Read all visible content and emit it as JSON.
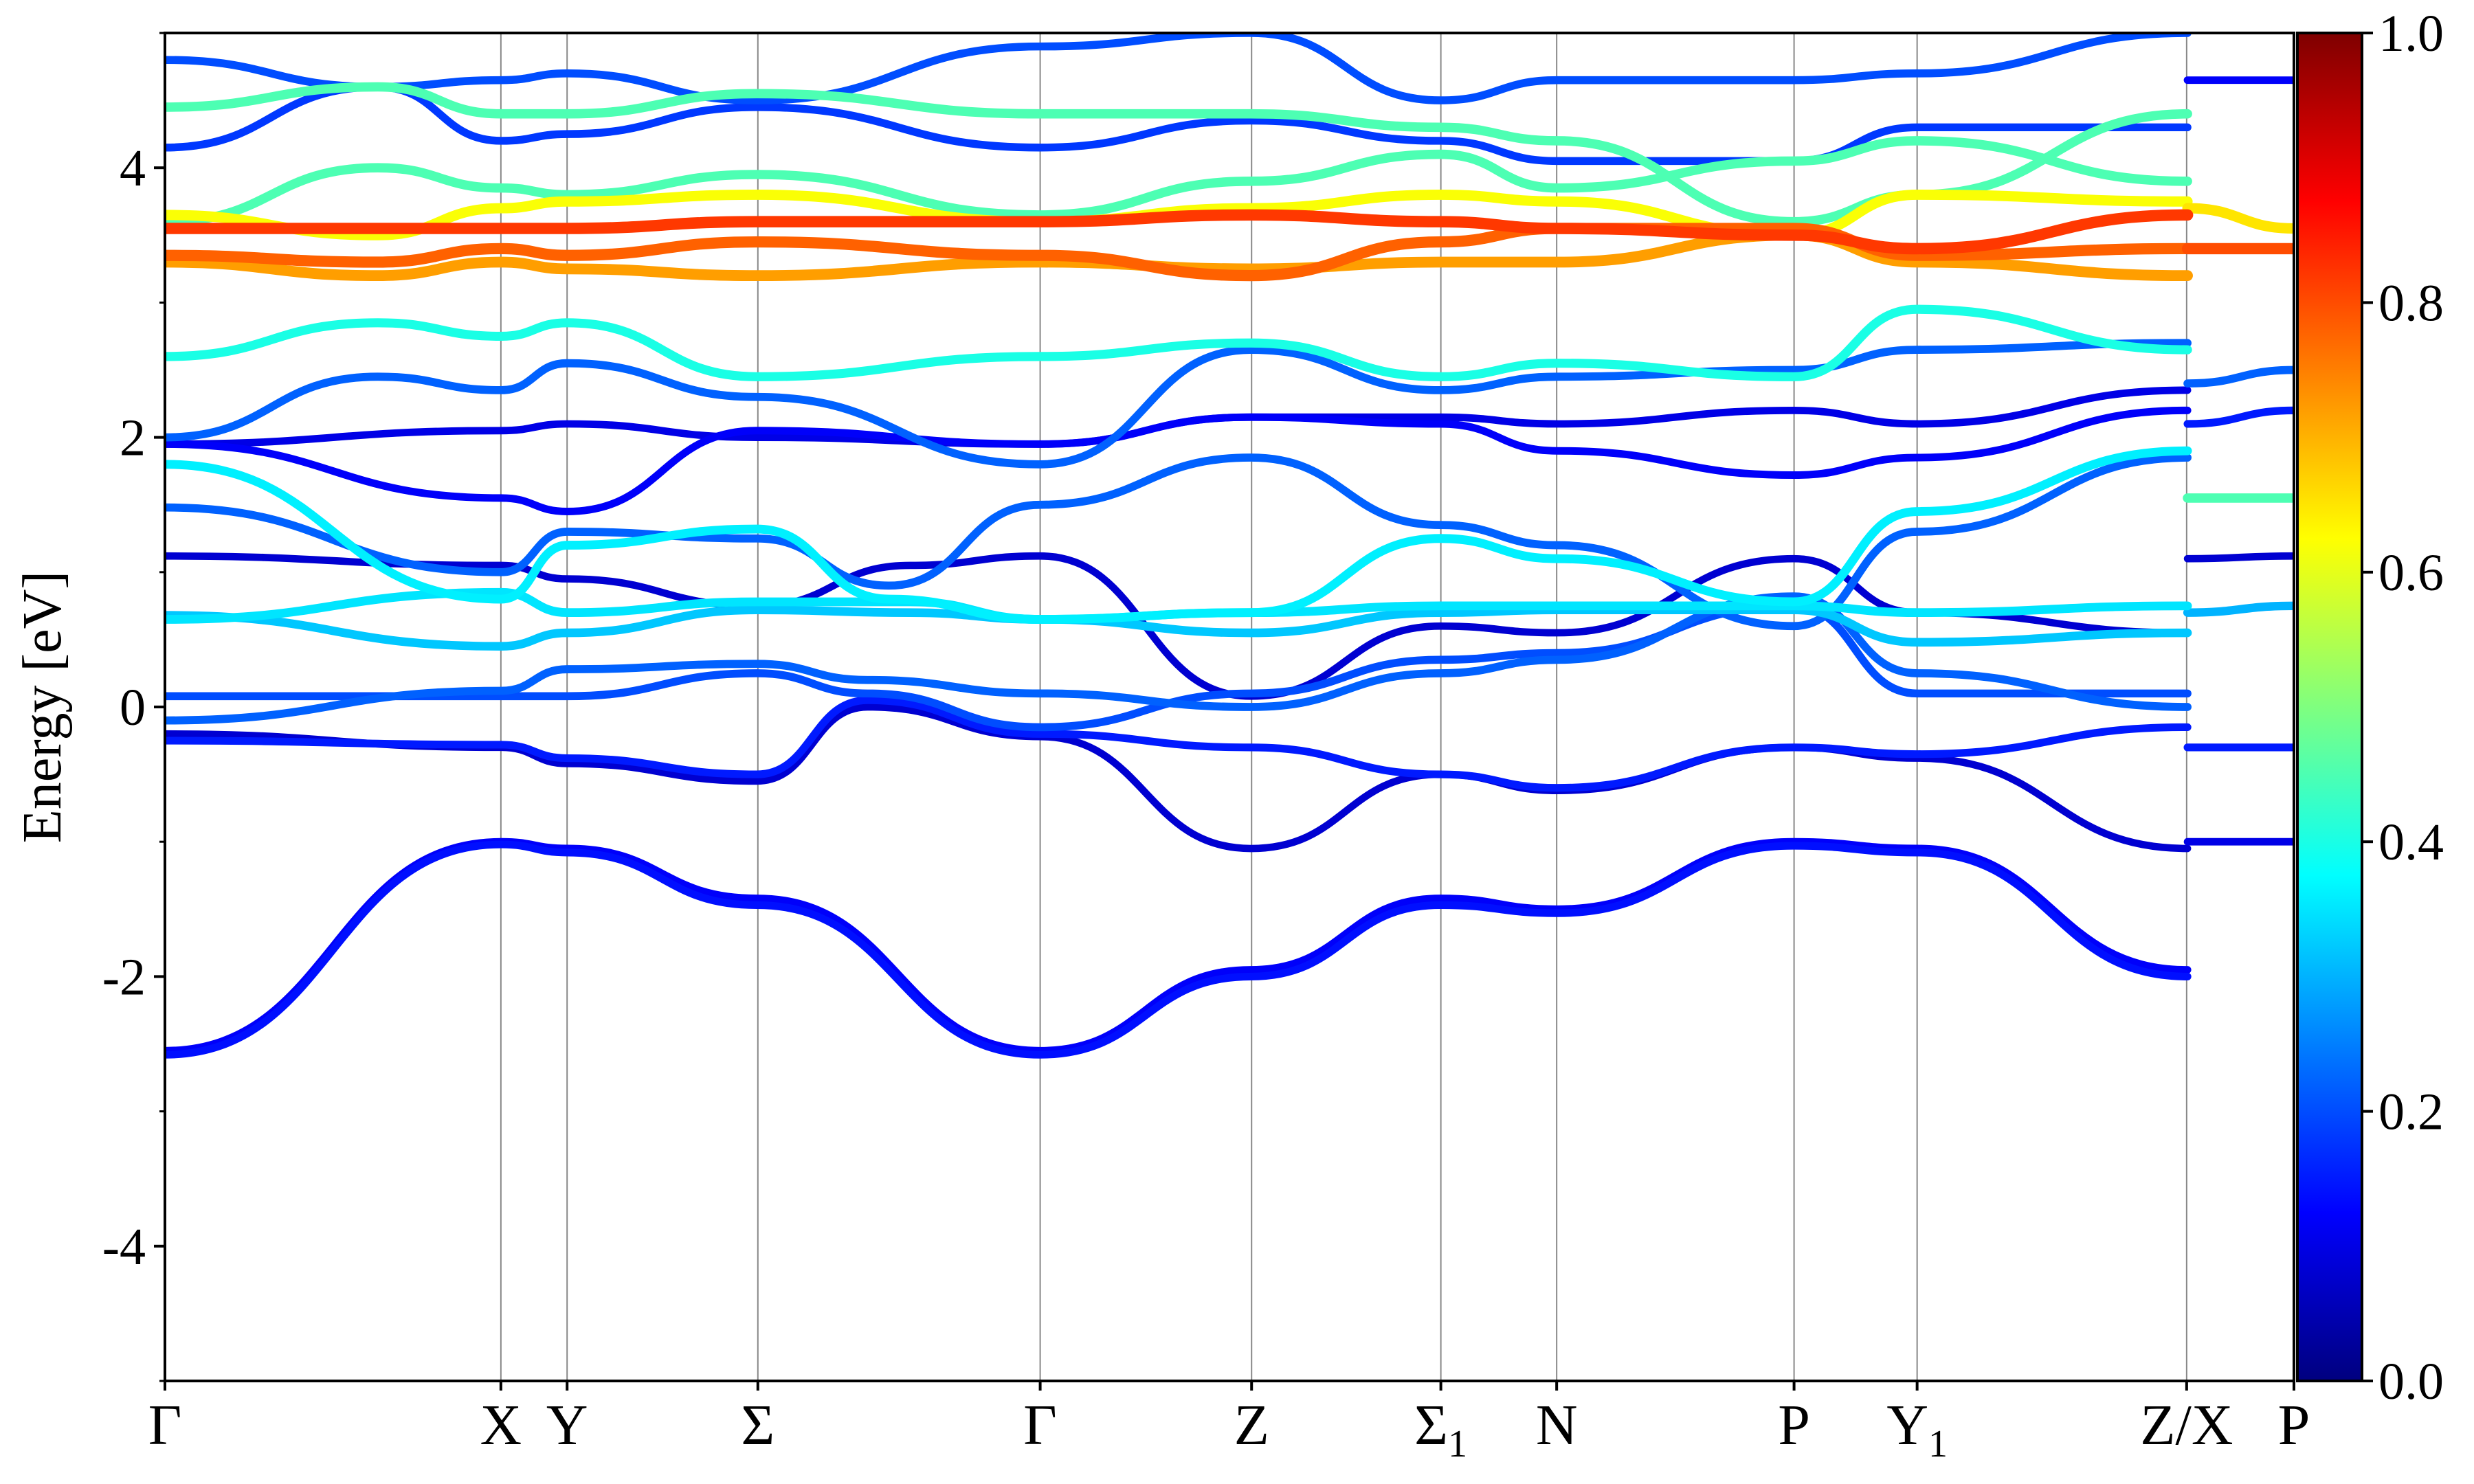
{
  "chart_data": {
    "type": "line",
    "title": "",
    "ylabel": "Energy [eV]",
    "xlabel": "",
    "ylim": [
      -5,
      5
    ],
    "yticks": [
      -4,
      -2,
      0,
      2,
      4
    ],
    "ytick_labels": [
      "-4",
      "-2",
      "0",
      "2",
      "4"
    ],
    "k_points": [
      {
        "label": "Γ",
        "sub": "",
        "x": 0.0
      },
      {
        "label": "X",
        "sub": "",
        "x": 1.578
      },
      {
        "label": "Y",
        "sub": "",
        "x": 1.889
      },
      {
        "label": "Σ",
        "sub": "",
        "x": 2.785
      },
      {
        "label": "Γ",
        "sub": "",
        "x": 4.111
      },
      {
        "label": "Z",
        "sub": "",
        "x": 5.104
      },
      {
        "label": "Σ",
        "sub": "1",
        "x": 5.993
      },
      {
        "label": "N",
        "sub": "",
        "x": 6.537
      },
      {
        "label": "P",
        "sub": "",
        "x": 7.652
      },
      {
        "label": "Y",
        "sub": "1",
        "x": 8.23
      },
      {
        "label": "Z/X",
        "sub": "",
        "x": 9.496
      },
      {
        "label": "P",
        "sub": "",
        "x": 10.0
      }
    ],
    "colorbar": {
      "colormap": "jet",
      "range": [
        0.0,
        1.0
      ],
      "ticks": [
        "0.0",
        "0.2",
        "0.4",
        "0.6",
        "0.8",
        "1.0"
      ],
      "stops": [
        "#00007f",
        "#0000ff",
        "#007fff",
        "#00ffff",
        "#7fff7f",
        "#ffff00",
        "#ff7f00",
        "#ff0000",
        "#7f0000"
      ]
    },
    "grid": "vertical lines at high-symmetry points",
    "series": [
      {
        "x": [
          0,
          1.58,
          1.89,
          2.78,
          4.11,
          5.1,
          5.99,
          6.54,
          7.65,
          8.23,
          9.5
        ],
        "y": [
          -2.55,
          -1.0,
          -1.05,
          -1.42,
          -2.55,
          -1.95,
          -1.42,
          -1.5,
          -1.0,
          -1.05,
          -1.95
        ],
        "weight": 0.12
      },
      {
        "x": [
          0,
          1.58,
          1.89,
          2.78,
          4.11,
          5.1,
          5.99,
          6.54,
          7.65,
          8.23,
          9.5
        ],
        "y": [
          -2.58,
          -1.02,
          -1.08,
          -1.47,
          -2.58,
          -2.0,
          -1.47,
          -1.53,
          -1.03,
          -1.08,
          -2.0
        ],
        "weight": 0.14
      },
      {
        "x": [
          0,
          1.58,
          1.89,
          2.78,
          3.3,
          4.11,
          5.1,
          5.99,
          6.54,
          7.65,
          8.23,
          9.5
        ],
        "y": [
          -0.25,
          -0.28,
          -0.38,
          -0.5,
          0.05,
          -0.2,
          -0.3,
          -0.5,
          -0.6,
          -0.3,
          -0.35,
          -0.15
        ],
        "weight": 0.15
      },
      {
        "x": [
          0,
          1.58,
          1.89,
          2.78,
          3.3,
          4.11,
          5.1,
          5.99,
          6.54,
          7.65,
          8.23,
          9.5
        ],
        "y": [
          -0.2,
          -0.3,
          -0.42,
          -0.55,
          0.0,
          -0.22,
          -1.05,
          -0.5,
          -0.62,
          -0.3,
          -0.38,
          -1.05
        ],
        "weight": 0.08
      },
      {
        "x": [
          0,
          1.58,
          1.89,
          2.78,
          3.3,
          4.11,
          5.1,
          5.99,
          6.54,
          7.65,
          8.23,
          9.5
        ],
        "y": [
          0.08,
          0.08,
          0.08,
          0.25,
          0.1,
          -0.15,
          0.1,
          0.35,
          0.4,
          0.75,
          0.1,
          0.1
        ],
        "weight": 0.2
      },
      {
        "x": [
          0,
          1.58,
          1.89,
          2.78,
          3.3,
          4.11,
          5.1,
          5.99,
          6.54,
          7.65,
          8.23,
          9.5
        ],
        "y": [
          -0.1,
          0.12,
          0.28,
          0.32,
          0.2,
          0.1,
          0.0,
          0.25,
          0.35,
          0.82,
          0.25,
          0.0
        ],
        "weight": 0.22
      },
      {
        "x": [
          0,
          1.58,
          1.89,
          2.78,
          3.5,
          4.11,
          5.1,
          5.99,
          6.54,
          7.65,
          8.23,
          9.5
        ],
        "y": [
          0.68,
          0.45,
          0.55,
          0.72,
          0.7,
          0.65,
          0.55,
          0.7,
          0.72,
          0.72,
          0.48,
          0.55
        ],
        "weight": 0.32
      },
      {
        "x": [
          0,
          1.58,
          1.89,
          2.78,
          3.5,
          4.11,
          5.1,
          5.99,
          6.54,
          7.65,
          8.23,
          9.5
        ],
        "y": [
          0.65,
          0.85,
          0.7,
          0.78,
          0.78,
          0.65,
          0.7,
          0.75,
          0.75,
          0.75,
          0.7,
          0.75
        ],
        "weight": 0.35
      },
      {
        "x": [
          0,
          1.58,
          1.89,
          2.78,
          3.5,
          4.11,
          5.1,
          5.99,
          6.54,
          7.65,
          8.23,
          9.5
        ],
        "y": [
          1.12,
          1.05,
          0.95,
          0.75,
          1.05,
          1.12,
          0.08,
          0.6,
          0.55,
          1.1,
          0.7,
          0.55
        ],
        "weight": 0.08
      },
      {
        "x": [
          0,
          1.58,
          1.89,
          2.78,
          3.4,
          4.11,
          5.1,
          5.99,
          6.54,
          7.65,
          8.23,
          9.5
        ],
        "y": [
          1.8,
          0.8,
          1.2,
          1.32,
          0.8,
          0.65,
          0.7,
          1.25,
          1.1,
          0.78,
          1.45,
          1.9
        ],
        "weight": 0.36
      },
      {
        "x": [
          0,
          1.58,
          1.89,
          2.78,
          3.4,
          4.11,
          5.1,
          5.99,
          6.54,
          7.65,
          8.23,
          9.5
        ],
        "y": [
          1.48,
          1.0,
          1.3,
          1.25,
          0.9,
          1.5,
          1.85,
          1.35,
          1.2,
          0.6,
          1.3,
          1.85
        ],
        "weight": 0.22
      },
      {
        "x": [
          0,
          1.58,
          1.89,
          2.78,
          4.11,
          5.1,
          5.99,
          6.54,
          7.65,
          8.23,
          9.5
        ],
        "y": [
          1.95,
          1.55,
          1.45,
          2.05,
          1.95,
          2.15,
          2.1,
          1.9,
          1.72,
          1.85,
          2.2
        ],
        "weight": 0.12
      },
      {
        "x": [
          0,
          1.58,
          1.89,
          2.78,
          4.11,
          5.1,
          5.99,
          6.54,
          7.65,
          8.23,
          9.5
        ],
        "y": [
          1.95,
          2.05,
          2.1,
          2.0,
          1.95,
          2.15,
          2.15,
          2.1,
          2.2,
          2.1,
          2.35
        ],
        "weight": 0.1
      },
      {
        "x": [
          0,
          1.0,
          1.58,
          1.89,
          2.78,
          4.11,
          5.1,
          5.99,
          6.54,
          7.65,
          8.23,
          9.5
        ],
        "y": [
          2.0,
          2.45,
          2.35,
          2.55,
          2.3,
          1.8,
          2.65,
          2.35,
          2.45,
          2.5,
          2.65,
          2.7
        ],
        "weight": 0.22
      },
      {
        "x": [
          0,
          1.0,
          1.58,
          1.89,
          2.78,
          4.11,
          5.1,
          5.99,
          6.54,
          7.65,
          8.23,
          9.5
        ],
        "y": [
          2.6,
          2.85,
          2.75,
          2.85,
          2.45,
          2.6,
          2.7,
          2.45,
          2.55,
          2.45,
          2.95,
          2.65
        ],
        "weight": 0.4
      },
      {
        "x": [
          0,
          1.0,
          1.58,
          1.89,
          2.78,
          4.11,
          5.1,
          5.99,
          6.54,
          7.65,
          8.23,
          9.5
        ],
        "y": [
          3.3,
          3.2,
          3.3,
          3.25,
          3.2,
          3.3,
          3.25,
          3.3,
          3.3,
          3.5,
          3.3,
          3.2
        ],
        "weight": 0.72
      },
      {
        "x": [
          0,
          1.0,
          1.58,
          1.89,
          2.78,
          4.11,
          5.1,
          5.99,
          6.54,
          7.65,
          8.23,
          9.5
        ],
        "y": [
          3.35,
          3.3,
          3.4,
          3.35,
          3.45,
          3.35,
          3.2,
          3.45,
          3.55,
          3.55,
          3.35,
          3.4
        ],
        "weight": 0.78
      },
      {
        "x": [
          0,
          1.0,
          1.58,
          1.89,
          2.78,
          4.11,
          5.1,
          5.99,
          6.54,
          7.65,
          8.23,
          9.5
        ],
        "y": [
          3.55,
          3.55,
          3.55,
          3.55,
          3.6,
          3.6,
          3.65,
          3.6,
          3.55,
          3.5,
          3.4,
          3.65
        ],
        "weight": 0.82
      },
      {
        "x": [
          0,
          1.0,
          1.58,
          1.89,
          2.78,
          4.11,
          5.1,
          5.99,
          6.54,
          7.65,
          8.23,
          9.5
        ],
        "y": [
          3.65,
          3.5,
          3.7,
          3.75,
          3.8,
          3.6,
          3.7,
          3.8,
          3.75,
          3.5,
          3.8,
          3.75
        ],
        "weight": 0.62
      },
      {
        "x": [
          0,
          1.0,
          1.58,
          1.89,
          2.78,
          4.11,
          5.1,
          5.99,
          6.54,
          7.65,
          8.23,
          9.5
        ],
        "y": [
          3.6,
          4.0,
          3.85,
          3.8,
          3.95,
          3.65,
          3.9,
          4.1,
          3.85,
          4.05,
          4.2,
          3.9
        ],
        "weight": 0.45
      },
      {
        "x": [
          0,
          1.0,
          1.58,
          1.89,
          2.78,
          4.11,
          5.1,
          5.99,
          6.54,
          7.65,
          8.23,
          9.5
        ],
        "y": [
          4.15,
          4.6,
          4.2,
          4.25,
          4.45,
          4.15,
          4.35,
          4.2,
          4.05,
          4.05,
          4.3,
          4.3
        ],
        "weight": 0.18
      },
      {
        "x": [
          0,
          1.0,
          1.58,
          1.89,
          2.78,
          4.11,
          5.1,
          5.99,
          6.54,
          7.65,
          8.23,
          9.5
        ],
        "y": [
          4.45,
          4.6,
          4.4,
          4.4,
          4.55,
          4.4,
          4.4,
          4.3,
          4.2,
          3.6,
          3.8,
          4.4
        ],
        "weight": 0.45
      },
      {
        "x": [
          0,
          1.0,
          1.58,
          1.89,
          2.78,
          4.11,
          5.1,
          5.99,
          6.54,
          7.65,
          8.23,
          9.5
        ],
        "y": [
          4.8,
          4.6,
          4.65,
          4.7,
          4.5,
          4.9,
          5.0,
          4.5,
          4.65,
          4.65,
          4.7,
          5.0
        ],
        "weight": 0.2
      },
      {
        "x": [
          9.5,
          10.0
        ],
        "y": [
          -1.0,
          -1.0
        ],
        "weight": 0.1
      },
      {
        "x": [
          9.5,
          10.0
        ],
        "y": [
          -0.3,
          -0.3
        ],
        "weight": 0.15
      },
      {
        "x": [
          9.5,
          10.0
        ],
        "y": [
          0.7,
          0.75
        ],
        "weight": 0.3
      },
      {
        "x": [
          9.5,
          10.0
        ],
        "y": [
          1.1,
          1.12
        ],
        "weight": 0.08
      },
      {
        "x": [
          9.5,
          10.0
        ],
        "y": [
          1.55,
          1.55
        ],
        "weight": 0.45
      },
      {
        "x": [
          9.5,
          10.0
        ],
        "y": [
          2.1,
          2.2
        ],
        "weight": 0.15
      },
      {
        "x": [
          9.5,
          10.0
        ],
        "y": [
          2.4,
          2.5
        ],
        "weight": 0.22
      },
      {
        "x": [
          9.5,
          10.0
        ],
        "y": [
          3.4,
          3.4
        ],
        "weight": 0.8
      },
      {
        "x": [
          9.5,
          10.0
        ],
        "y": [
          3.7,
          3.55
        ],
        "weight": 0.65
      },
      {
        "x": [
          9.5,
          10.0
        ],
        "y": [
          4.65,
          4.65
        ],
        "weight": 0.12
      }
    ]
  }
}
